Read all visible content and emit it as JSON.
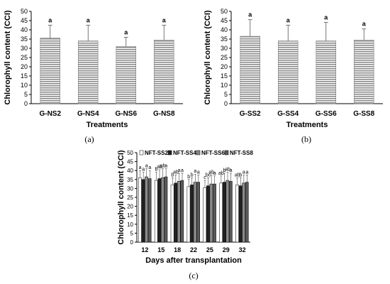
{
  "chart_data": [
    {
      "type": "bar",
      "id": "a",
      "panel_label": "(a)",
      "xlabel": "Treatments",
      "ylabel": "Chlorophyll content (CCI)",
      "ylim": [
        0,
        50
      ],
      "yticks": [
        0,
        5,
        10,
        15,
        20,
        25,
        30,
        35,
        40,
        45,
        50
      ],
      "categories": [
        "G-NS2",
        "G-NS4",
        "G-NS6",
        "G-NS8"
      ],
      "values": [
        35.5,
        34,
        31,
        34.5
      ],
      "errors": [
        7,
        8.5,
        5,
        8
      ],
      "significance": [
        "a",
        "a",
        "a",
        "a"
      ],
      "grid": false,
      "bar_color": "#a8a8a8"
    },
    {
      "type": "bar",
      "id": "b",
      "panel_label": "(b)",
      "xlabel": "Treatments",
      "ylabel": "Chlorophyll content (CCI)",
      "ylim": [
        0,
        50
      ],
      "yticks": [
        0,
        5,
        10,
        15,
        20,
        25,
        30,
        35,
        40,
        45,
        50
      ],
      "categories": [
        "G-SS2",
        "G-SS4",
        "G-SS6",
        "G-SS8"
      ],
      "values": [
        36.5,
        34,
        34,
        34.5
      ],
      "errors": [
        9,
        8.5,
        10,
        6
      ],
      "significance": [
        "a",
        "a",
        "a",
        "a"
      ],
      "grid": false,
      "bar_color": "#a8a8a8"
    },
    {
      "type": "bar",
      "id": "c",
      "panel_label": "(c)",
      "xlabel": "Days after transplantation",
      "ylabel": "Chlorophyll content (CCI)",
      "ylim": [
        0,
        50
      ],
      "yticks": [
        0,
        5,
        10,
        15,
        20,
        25,
        30,
        35,
        40,
        45,
        50
      ],
      "categories": [
        "12",
        "15",
        "18",
        "22",
        "25",
        "29",
        "32"
      ],
      "legend_position": "top",
      "grid": false,
      "series": [
        {
          "name": "NFT-SS2",
          "color": "#ffffff",
          "values": [
            36,
            34.5,
            32,
            31,
            30.5,
            33,
            32
          ],
          "errors": [
            4,
            4.5,
            4,
            4,
            4,
            4,
            4
          ],
          "significance": [
            "a",
            "b",
            "b",
            "b",
            "c",
            "ab",
            "ab"
          ]
        },
        {
          "name": "NFT-SS4",
          "color": "#222222",
          "values": [
            35,
            35.5,
            33,
            32,
            31.5,
            33.5,
            31.5
          ],
          "errors": [
            4,
            5,
            4.5,
            4,
            4.5,
            5,
            4.5
          ],
          "significance": [
            "a",
            "ab",
            "ab",
            "b",
            "bc",
            "b",
            "b"
          ]
        },
        {
          "name": "NFT-SS6",
          "color": "#8a8a8a",
          "values": [
            36.5,
            36,
            34,
            33.5,
            32.5,
            34.5,
            33
          ],
          "errors": [
            4.5,
            5,
            4.5,
            4.5,
            5,
            4.5,
            4.5
          ],
          "significance": [
            "a",
            "ab",
            "a",
            "a",
            "ab",
            "ab",
            "a"
          ]
        },
        {
          "name": "NFT-SS8",
          "color": "#5a5a5a",
          "values": [
            35.5,
            36.5,
            34.5,
            33.5,
            32.5,
            34,
            33.5
          ],
          "errors": [
            4.5,
            4.5,
            4,
            4,
            4.5,
            4.5,
            4
          ],
          "significance": [
            "a",
            "a",
            "a",
            "a",
            "a",
            "a",
            "a"
          ]
        }
      ]
    }
  ]
}
